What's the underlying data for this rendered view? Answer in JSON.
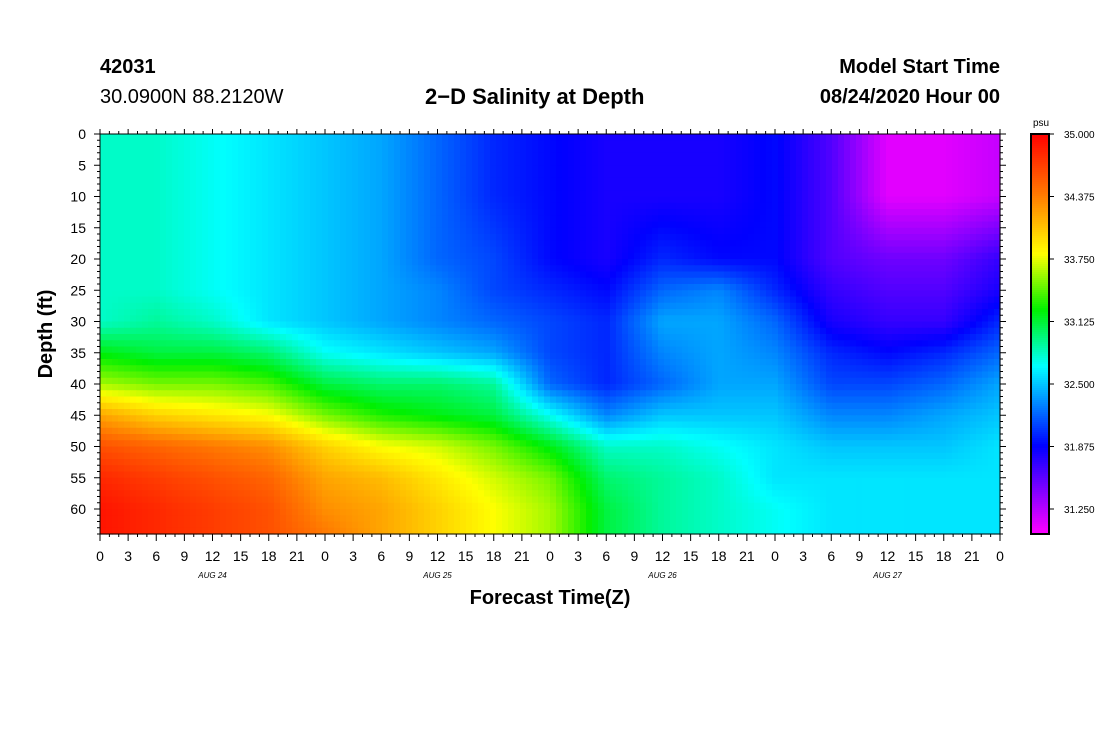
{
  "header": {
    "station_id": "42031",
    "coordinates": "30.0900N 88.2120W",
    "title": "2−D Salinity at Depth",
    "start_label": "Model Start Time",
    "start_value": "08/24/2020 Hour 00"
  },
  "chart_data": {
    "type": "heatmap",
    "title": "2−D Salinity at Depth",
    "xlabel": "Forecast Time(Z)",
    "ylabel": "Depth (ft)",
    "units": "psu",
    "x_ticks": [
      "0",
      "3",
      "6",
      "9",
      "12",
      "15",
      "18",
      "21",
      "0",
      "3",
      "6",
      "9",
      "12",
      "15",
      "18",
      "21",
      "0",
      "3",
      "6",
      "9",
      "12",
      "15",
      "18",
      "21",
      "0",
      "3",
      "6",
      "9",
      "12",
      "15",
      "18",
      "21",
      "0"
    ],
    "x_range_hours": [
      0,
      96
    ],
    "day_labels": [
      {
        "label": "AUG 24",
        "hour": 12
      },
      {
        "label": "AUG 25",
        "hour": 36
      },
      {
        "label": "AUG 26",
        "hour": 60
      },
      {
        "label": "AUG 27",
        "hour": 84
      }
    ],
    "y_ticks": [
      0,
      5,
      10,
      15,
      20,
      25,
      30,
      35,
      40,
      45,
      50,
      55,
      60
    ],
    "y_range_ft": [
      0,
      64
    ],
    "colorbar": {
      "ticks": [
        "35.000",
        "34.375",
        "33.750",
        "33.125",
        "32.500",
        "31.875",
        "31.250"
      ],
      "range": [
        31.0,
        35.0
      ]
    },
    "salinity_grid": {
      "hours": [
        0,
        6,
        12,
        18,
        24,
        30,
        36,
        42,
        48,
        54,
        60,
        66,
        72,
        78,
        84,
        90,
        96
      ],
      "depths": [
        0,
        10,
        20,
        25,
        30,
        35,
        40,
        45,
        50,
        55,
        60,
        64
      ],
      "values": [
        [
          32.8,
          32.8,
          32.7,
          32.6,
          32.5,
          32.4,
          32.2,
          32.0,
          31.9,
          31.8,
          31.8,
          31.8,
          31.9,
          31.6,
          31.1,
          31.1,
          31.2
        ],
        [
          32.8,
          32.8,
          32.7,
          32.6,
          32.5,
          32.4,
          32.2,
          32.0,
          31.9,
          31.8,
          31.8,
          31.8,
          31.9,
          31.6,
          31.1,
          31.1,
          31.2
        ],
        [
          32.8,
          32.8,
          32.7,
          32.6,
          32.5,
          32.4,
          32.2,
          32.1,
          31.9,
          31.8,
          32.0,
          31.9,
          31.9,
          31.6,
          31.5,
          31.5,
          31.7
        ],
        [
          32.8,
          32.8,
          32.7,
          32.6,
          32.5,
          32.4,
          32.3,
          32.1,
          32.0,
          31.9,
          32.2,
          32.3,
          32.0,
          31.7,
          31.6,
          31.6,
          31.8
        ],
        [
          32.8,
          32.9,
          32.8,
          32.6,
          32.5,
          32.4,
          32.3,
          32.2,
          32.1,
          32.0,
          32.4,
          32.4,
          32.2,
          31.8,
          31.7,
          31.7,
          32.0
        ],
        [
          33.2,
          33.1,
          33.1,
          33.0,
          32.7,
          32.6,
          32.5,
          32.4,
          32.1,
          32.0,
          32.3,
          32.4,
          32.3,
          32.0,
          31.9,
          32.0,
          32.2
        ],
        [
          33.6,
          33.5,
          33.5,
          33.4,
          33.1,
          33.0,
          33.0,
          32.9,
          32.2,
          32.0,
          32.2,
          32.4,
          32.4,
          32.1,
          32.1,
          32.2,
          32.4
        ],
        [
          34.2,
          34.0,
          33.9,
          33.8,
          33.5,
          33.3,
          33.2,
          33.1,
          32.7,
          32.3,
          32.5,
          32.5,
          32.5,
          32.3,
          32.3,
          32.4,
          32.5
        ],
        [
          34.6,
          34.5,
          34.4,
          34.3,
          34.0,
          33.8,
          33.7,
          33.5,
          33.2,
          32.8,
          32.8,
          32.7,
          32.6,
          32.5,
          32.5,
          32.5,
          32.6
        ],
        [
          34.8,
          34.7,
          34.6,
          34.5,
          34.2,
          34.1,
          33.9,
          33.7,
          33.5,
          33.0,
          32.9,
          32.8,
          32.6,
          32.6,
          32.6,
          32.6,
          32.6
        ],
        [
          34.9,
          34.8,
          34.7,
          34.6,
          34.3,
          34.2,
          34.0,
          33.8,
          33.6,
          33.1,
          32.9,
          32.8,
          32.7,
          32.6,
          32.6,
          32.6,
          32.6
        ],
        [
          34.9,
          34.8,
          34.7,
          34.6,
          34.4,
          34.2,
          34.0,
          33.8,
          33.6,
          33.1,
          32.9,
          32.8,
          32.7,
          32.6,
          32.6,
          32.6,
          32.6
        ]
      ]
    }
  }
}
